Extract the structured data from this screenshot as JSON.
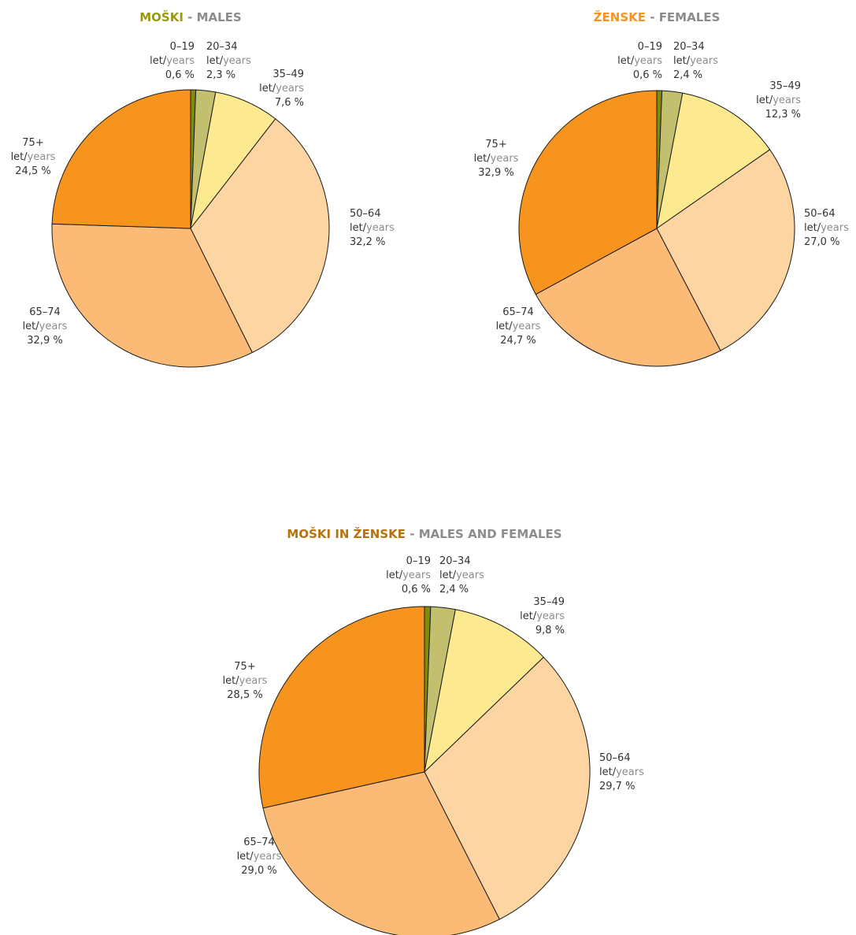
{
  "legend_words": {
    "prefix": "let/",
    "suffix": "years"
  },
  "colors": {
    "title_males": "#9a9a0a",
    "title_females": "#f7941d",
    "title_both": "#b5730f",
    "title_en": "#8c8c8c",
    "slices": [
      "#7f8c0b",
      "#c2bf6f",
      "#fde98f",
      "#fcd5a2",
      "#fbbb76",
      "#f7941d"
    ]
  },
  "chart_data": [
    {
      "type": "pie",
      "title_local": "MOŠKI",
      "title_sep": " - ",
      "title_en": "MALES",
      "categories": [
        "0–19",
        "20–34",
        "35–49",
        "50–64",
        "65–74",
        "75+"
      ],
      "values": [
        0.6,
        2.3,
        7.6,
        32.2,
        32.9,
        24.5
      ],
      "value_labels": [
        "0,6 %",
        "2,3 %",
        "7,6 %",
        "32,2 %",
        "32,9 %",
        "24,5 %"
      ]
    },
    {
      "type": "pie",
      "title_local": "ŽENSKE",
      "title_sep": " - ",
      "title_en": "FEMALES",
      "categories": [
        "0–19",
        "20–34",
        "35–49",
        "50–64",
        "65–74",
        "75+"
      ],
      "values": [
        0.6,
        2.4,
        12.3,
        27.0,
        24.7,
        32.9
      ],
      "value_labels": [
        "0,6 %",
        "2,4 %",
        "12,3 %",
        "27,0 %",
        "24,7 %",
        "32,9 %"
      ]
    },
    {
      "type": "pie",
      "title_local": "MOŠKI IN ŽENSKE",
      "title_sep": " - ",
      "title_en": "MALES AND FEMALES",
      "categories": [
        "0–19",
        "20–34",
        "35–49",
        "50–64",
        "65–74",
        "75+"
      ],
      "values": [
        0.6,
        2.4,
        9.8,
        29.7,
        29.0,
        28.5
      ],
      "value_labels": [
        "0,6 %",
        "2,4 %",
        "9,8 %",
        "29,7 %",
        "29,0 %",
        "28,5 %"
      ]
    }
  ]
}
